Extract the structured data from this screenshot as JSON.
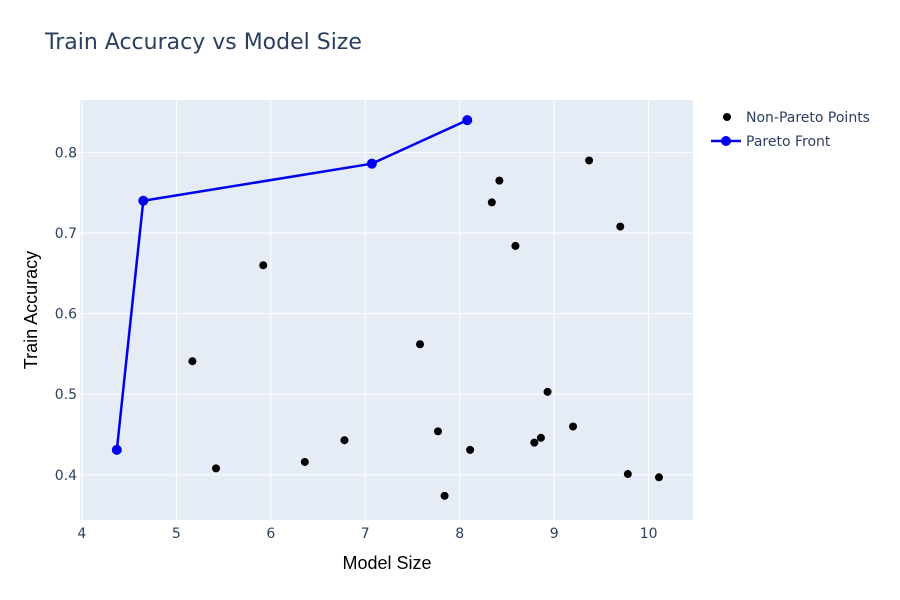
{
  "chart_data": {
    "type": "scatter",
    "title": "Train Accuracy vs Model Size",
    "xlabel": "Model Size",
    "ylabel": "Train Accuracy",
    "xlim": [
      3.98,
      10.47
    ],
    "ylim": [
      0.344,
      0.865
    ],
    "xticks": [
      4,
      5,
      6,
      7,
      8,
      9,
      10
    ],
    "yticks": [
      0.4,
      0.5,
      0.6,
      0.7,
      0.8
    ],
    "grid": true,
    "background": "#e5ecf6",
    "gridline_color": "#ffffff",
    "legend_position": "top-right, outside plot",
    "series": [
      {
        "name": "Non-Pareto Points",
        "mode": "markers",
        "color": "#000000",
        "points": [
          {
            "x": 5.17,
            "y": 0.541
          },
          {
            "x": 5.42,
            "y": 0.408
          },
          {
            "x": 5.92,
            "y": 0.66
          },
          {
            "x": 6.36,
            "y": 0.416
          },
          {
            "x": 6.78,
            "y": 0.443
          },
          {
            "x": 7.58,
            "y": 0.562
          },
          {
            "x": 7.77,
            "y": 0.454
          },
          {
            "x": 7.84,
            "y": 0.374
          },
          {
            "x": 8.11,
            "y": 0.431
          },
          {
            "x": 8.34,
            "y": 0.738
          },
          {
            "x": 8.42,
            "y": 0.765
          },
          {
            "x": 8.59,
            "y": 0.684
          },
          {
            "x": 8.79,
            "y": 0.44
          },
          {
            "x": 8.86,
            "y": 0.446
          },
          {
            "x": 8.93,
            "y": 0.503
          },
          {
            "x": 9.2,
            "y": 0.46
          },
          {
            "x": 9.37,
            "y": 0.79
          },
          {
            "x": 9.7,
            "y": 0.708
          },
          {
            "x": 9.78,
            "y": 0.401
          },
          {
            "x": 10.11,
            "y": 0.397
          }
        ]
      },
      {
        "name": "Pareto Front",
        "mode": "lines+markers",
        "color": "#0000ee",
        "points": [
          {
            "x": 4.37,
            "y": 0.431
          },
          {
            "x": 4.65,
            "y": 0.74
          },
          {
            "x": 7.07,
            "y": 0.786
          },
          {
            "x": 8.08,
            "y": 0.84
          }
        ]
      }
    ]
  }
}
